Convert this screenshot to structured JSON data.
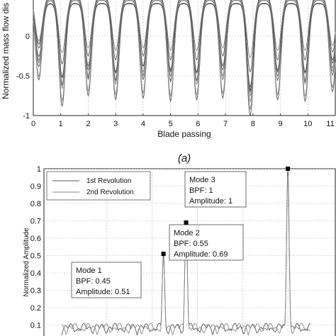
{
  "chart_data": [
    {
      "type": "line",
      "xlabel": "Blade passing",
      "ylabel": "Normalized mass flow dis",
      "xlim": [
        0,
        11
      ],
      "ylim": [
        -1,
        0.5
      ],
      "x_ticks": [
        "0",
        "1",
        "2",
        "3",
        "4",
        "5",
        "6",
        "7",
        "8",
        "9",
        "10",
        "11"
      ],
      "y_ticks": [
        "-1",
        "-0.5",
        "0"
      ],
      "grid": true,
      "x_grid_values": [
        1,
        2,
        3,
        4,
        5,
        6,
        7,
        8,
        9,
        10
      ],
      "series": [
        {
          "values_description": "periodic mass flow traces",
          "troughs_x": [
            0.2,
            1.05,
            2.0,
            3.0,
            4.0,
            5.0,
            5.95,
            6.9,
            7.9,
            8.9,
            9.9,
            10.9
          ],
          "trough_min": [
            -0.55,
            -0.88,
            -0.75,
            -0.8,
            -0.78,
            -0.82,
            -0.8,
            -0.78,
            -1.0,
            -0.8,
            -0.82,
            -0.7
          ]
        },
        {
          "trough_min": [
            -0.3,
            -0.6,
            -0.5,
            -0.55,
            -0.45,
            -0.5,
            -0.55,
            -0.5,
            -0.75,
            -0.5,
            -0.55,
            -0.4
          ]
        },
        {
          "trough_min": [
            -0.1,
            -0.35,
            -0.25,
            -0.3,
            -0.25,
            -0.3,
            -0.3,
            -0.25,
            -0.45,
            -0.3,
            -0.3,
            -0.2
          ]
        }
      ],
      "caption": "(a)"
    },
    {
      "type": "line",
      "xlabel": "",
      "ylabel": "Normalized Amplitude",
      "ylim": [
        0,
        1
      ],
      "y_ticks": [
        "0.1",
        "0.2",
        "0.3",
        "0.4",
        "0.5",
        "0.6",
        "0.7",
        "0.8",
        "0.9",
        "1"
      ],
      "grid": true,
      "legend": {
        "position": "top-left",
        "entries": [
          "1st Revolution",
          "2nd Revolution"
        ]
      },
      "peaks": [
        {
          "x": 0.45,
          "y": 0.51
        },
        {
          "x": 0.55,
          "y": 0.69
        },
        {
          "x": 1.0,
          "y": 1.0
        }
      ],
      "annotations": [
        {
          "lines": [
            "Mode 1",
            "BPF: 0.45",
            "Amplitude: 0.51"
          ]
        },
        {
          "lines": [
            "Mode 2",
            "BPF: 0.55",
            "Amplitude: 0.69"
          ]
        },
        {
          "lines": [
            "Mode 3",
            "BPF: 1",
            "Amplitude: 1"
          ]
        }
      ]
    }
  ],
  "colors": {
    "series1": "#555555",
    "series2": "#8a8a8a",
    "marker": "#000000"
  }
}
